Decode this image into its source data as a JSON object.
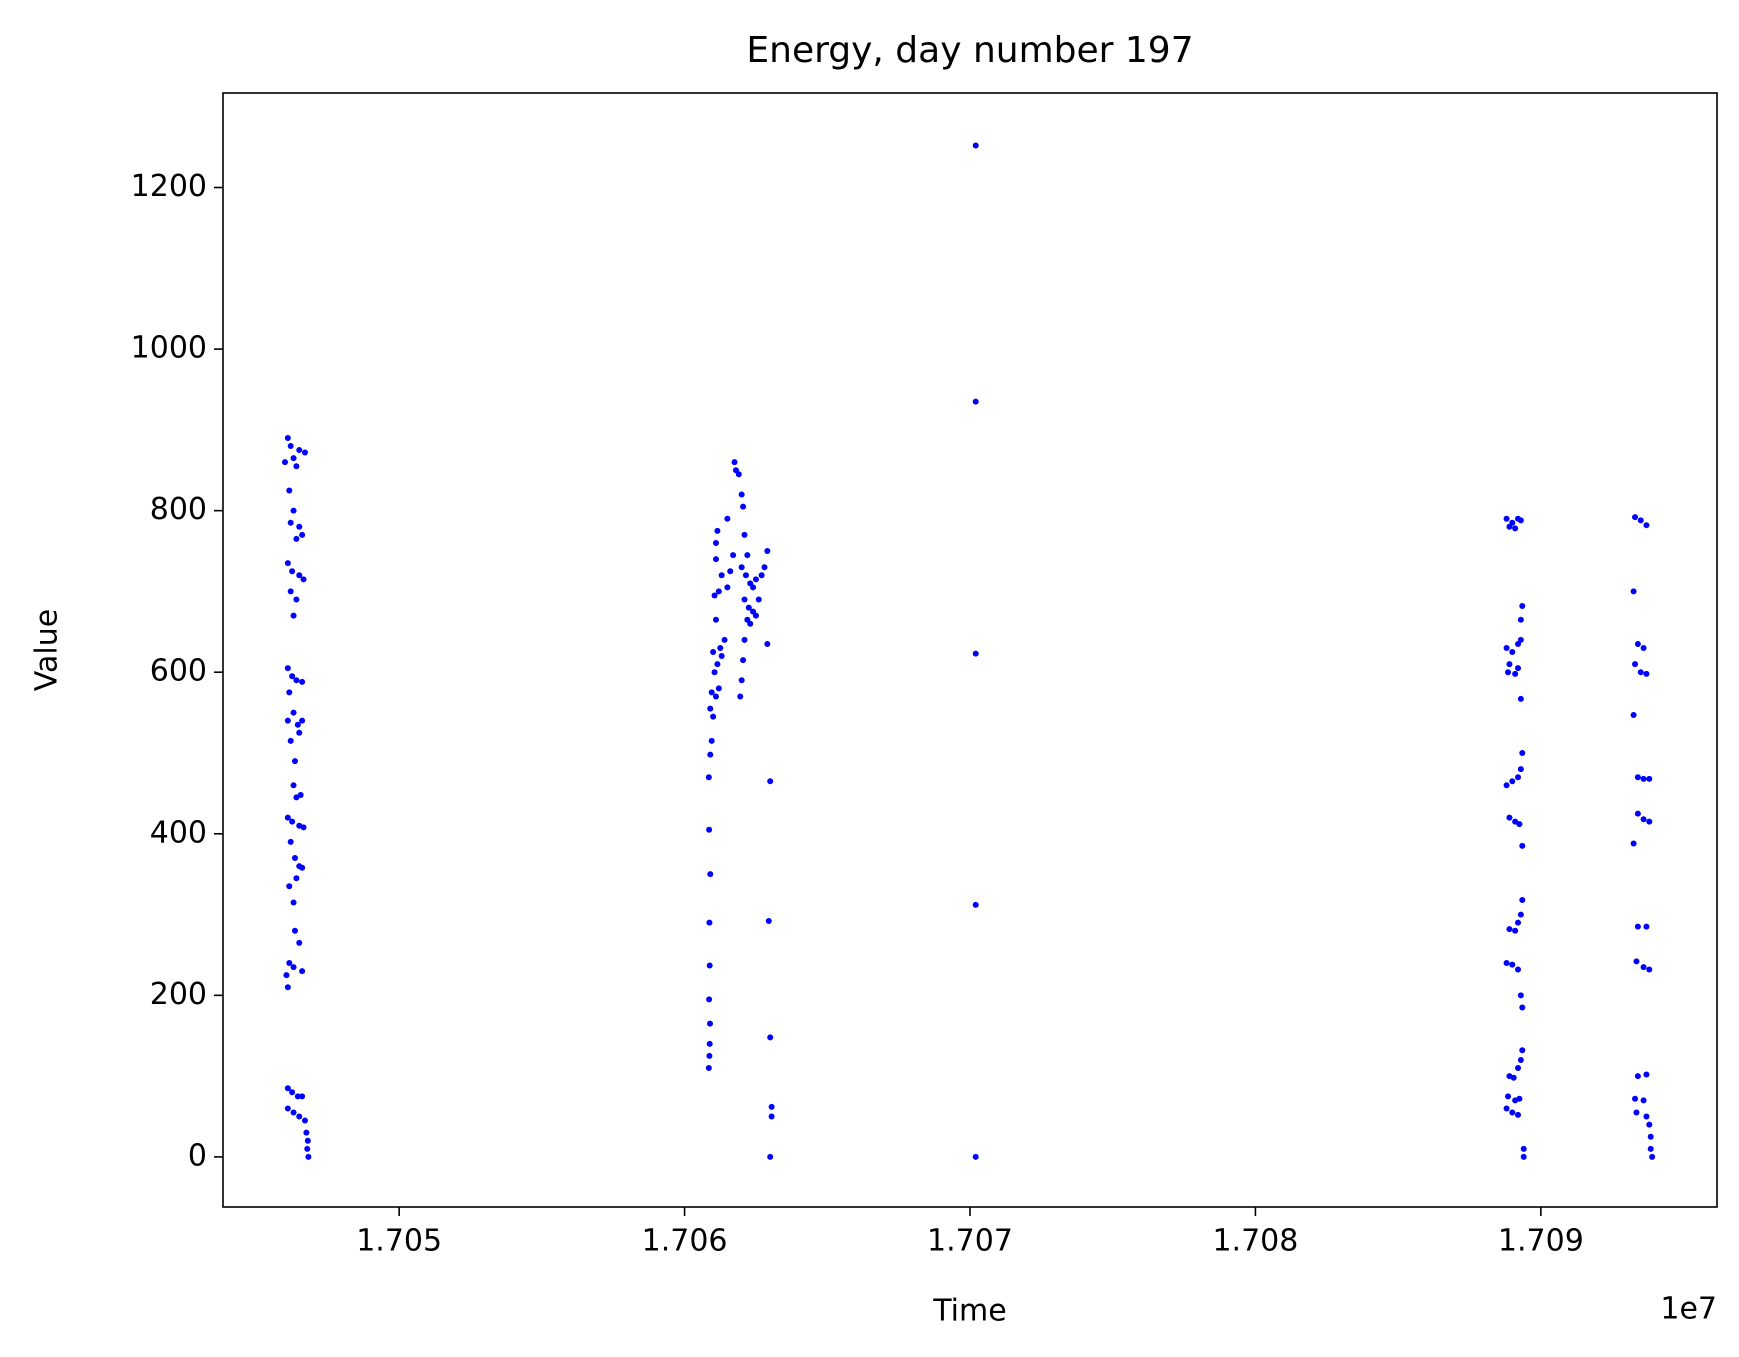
{
  "chart_data": {
    "type": "scatter",
    "title": "Energy, day number 197",
    "xlabel": "Time",
    "ylabel": "Value",
    "x_offset_label": "1e7",
    "color": "#0000ff",
    "grid": false,
    "xlim": [
      17043828,
      17096172
    ],
    "ylim": [
      -62,
      1317
    ],
    "xticks": [
      {
        "value": 17050000,
        "label": "1.705"
      },
      {
        "value": 17060000,
        "label": "1.706"
      },
      {
        "value": 17070000,
        "label": "1.707"
      },
      {
        "value": 17080000,
        "label": "1.708"
      },
      {
        "value": 17090000,
        "label": "1.709"
      }
    ],
    "yticks": [
      0,
      200,
      400,
      600,
      800,
      1000,
      1200
    ],
    "x": [
      17046100,
      17046200,
      17046500,
      17046700,
      17046300,
      17046000,
      17046400,
      17046150,
      17046300,
      17046200,
      17046500,
      17046600,
      17046400,
      17046100,
      17046250,
      17046500,
      17046650,
      17046200,
      17046400,
      17046300,
      17046100,
      17046250,
      17046400,
      17046600,
      17046150,
      17046300,
      17046100,
      17046450,
      17046600,
      17046500,
      17046200,
      17046350,
      17046300,
      17046400,
      17046550,
      17046100,
      17046250,
      17046500,
      17046650,
      17046200,
      17046350,
      17046500,
      17046600,
      17046400,
      17046150,
      17046300,
      17046350,
      17046500,
      17046150,
      17046300,
      17046600,
      17046050,
      17046100,
      17046100,
      17046250,
      17046450,
      17046600,
      17046100,
      17046300,
      17046500,
      17046700,
      17046750,
      17046800,
      17046780,
      17046820,
      17060850,
      17060870,
      17060880,
      17060890,
      17060860,
      17060880,
      17060870,
      17060900,
      17060860,
      17060850,
      17060900,
      17060950,
      17061000,
      17060900,
      17060950,
      17061100,
      17061200,
      17061050,
      17061150,
      17061300,
      17061000,
      17061250,
      17061400,
      17061100,
      17061050,
      17061200,
      17061500,
      17061300,
      17061600,
      17061700,
      17061100,
      17061100,
      17061150,
      17061500,
      17061800,
      17061900,
      17061750,
      17062000,
      17062050,
      17062100,
      17062200,
      17062000,
      17062150,
      17062300,
      17062400,
      17062500,
      17062700,
      17062800,
      17062900,
      17062100,
      17062250,
      17062400,
      17062600,
      17062200,
      17062300,
      17062500,
      17062100,
      17062050,
      17062000,
      17061950,
      17062900,
      17063000,
      17062950,
      17063000,
      17063050,
      17063050,
      17063000,
      17070200,
      17070200,
      17070200,
      17070200,
      17070200,
      17088800,
      17089000,
      17089200,
      17089300,
      17088900,
      17089100,
      17089350,
      17089300,
      17088800,
      17089000,
      17089200,
      17089300,
      17088900,
      17088850,
      17089100,
      17089200,
      17089300,
      17089350,
      17089300,
      17088800,
      17089000,
      17089200,
      17088900,
      17089100,
      17089250,
      17089350,
      17089350,
      17089300,
      17089200,
      17088900,
      17089100,
      17088800,
      17089000,
      17089200,
      17089300,
      17089350,
      17089350,
      17089300,
      17089200,
      17088900,
      17089050,
      17088850,
      17089100,
      17089250,
      17088800,
      17089000,
      17089200,
      17089400,
      17089400,
      17093300,
      17093500,
      17093700,
      17093250,
      17093400,
      17093600,
      17093300,
      17093500,
      17093700,
      17093250,
      17093400,
      17093600,
      17093800,
      17093400,
      17093600,
      17093800,
      17093250,
      17093400,
      17093700,
      17093350,
      17093600,
      17093800,
      17093400,
      17093700,
      17093300,
      17093600,
      17093350,
      17093700,
      17093800,
      17093850,
      17093850,
      17093900
    ],
    "values": [
      890,
      880,
      875,
      872,
      865,
      860,
      855,
      825,
      800,
      785,
      780,
      770,
      765,
      735,
      725,
      720,
      715,
      700,
      690,
      670,
      605,
      595,
      590,
      588,
      575,
      550,
      540,
      535,
      540,
      525,
      515,
      490,
      460,
      445,
      448,
      420,
      415,
      410,
      408,
      390,
      370,
      360,
      358,
      345,
      335,
      315,
      280,
      265,
      240,
      235,
      230,
      225,
      210,
      85,
      80,
      75,
      75,
      60,
      55,
      50,
      45,
      30,
      20,
      10,
      0,
      110,
      125,
      140,
      165,
      195,
      237,
      290,
      350,
      405,
      470,
      498,
      515,
      545,
      555,
      575,
      570,
      580,
      600,
      610,
      620,
      625,
      630,
      640,
      665,
      695,
      700,
      705,
      720,
      725,
      745,
      740,
      760,
      775,
      790,
      850,
      845,
      860,
      820,
      805,
      770,
      745,
      730,
      720,
      710,
      705,
      715,
      720,
      730,
      750,
      690,
      680,
      675,
      690,
      665,
      660,
      670,
      640,
      615,
      590,
      570,
      635,
      465,
      292,
      148,
      62,
      50,
      0,
      1252,
      935,
      623,
      312,
      0,
      790,
      785,
      790,
      788,
      780,
      778,
      682,
      665,
      630,
      625,
      635,
      640,
      610,
      600,
      598,
      605,
      567,
      500,
      480,
      460,
      465,
      470,
      420,
      415,
      412,
      385,
      318,
      300,
      290,
      282,
      280,
      240,
      238,
      232,
      200,
      185,
      132,
      120,
      110,
      100,
      98,
      75,
      70,
      72,
      60,
      55,
      52,
      10,
      0,
      792,
      788,
      782,
      700,
      635,
      630,
      610,
      600,
      598,
      547,
      470,
      468,
      468,
      425,
      418,
      415,
      388,
      285,
      285,
      242,
      235,
      232,
      100,
      102,
      72,
      70,
      55,
      50,
      40,
      25,
      10,
      0
    ]
  }
}
